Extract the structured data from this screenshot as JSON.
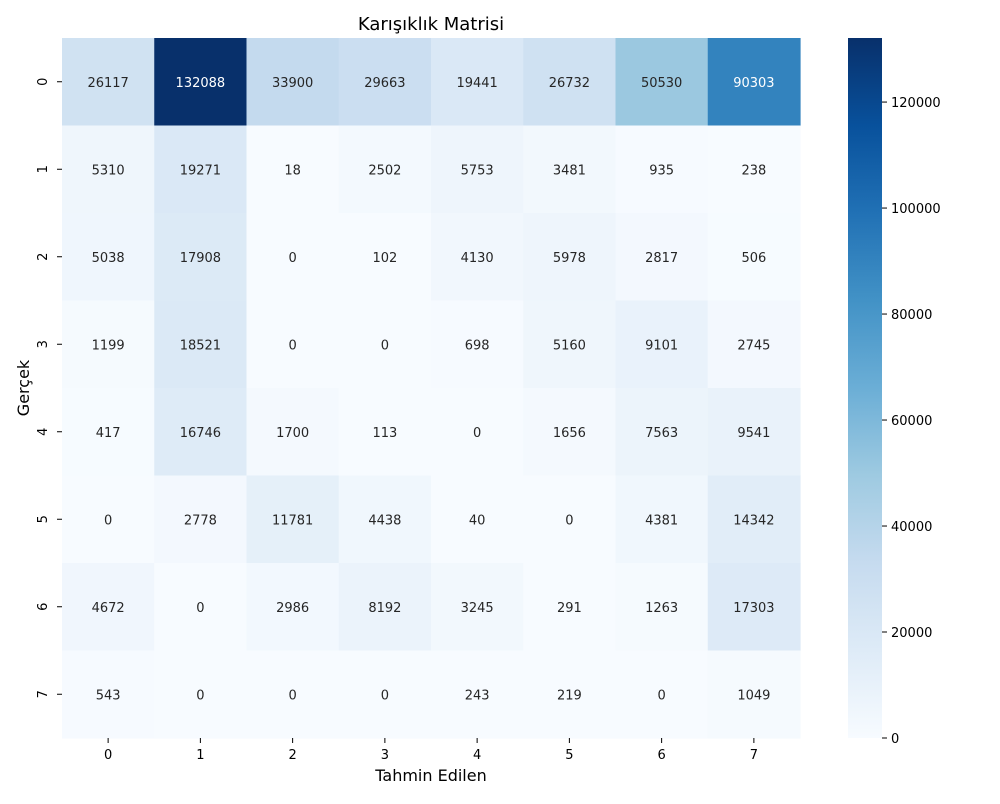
{
  "chart_data": {
    "type": "heatmap",
    "title": "Karışıklık Matrisi",
    "xlabel": "Tahmin Edilen",
    "ylabel": "Gerçek",
    "x_categories": [
      "0",
      "1",
      "2",
      "3",
      "4",
      "5",
      "6",
      "7"
    ],
    "y_categories": [
      "0",
      "1",
      "2",
      "3",
      "4",
      "5",
      "6",
      "7"
    ],
    "values": [
      [
        26117,
        132088,
        33900,
        29663,
        19441,
        26732,
        50530,
        90303
      ],
      [
        5310,
        19271,
        18,
        2502,
        5753,
        3481,
        935,
        238
      ],
      [
        5038,
        17908,
        0,
        102,
        4130,
        5978,
        2817,
        506
      ],
      [
        1199,
        18521,
        0,
        0,
        698,
        5160,
        9101,
        2745
      ],
      [
        417,
        16746,
        1700,
        113,
        0,
        1656,
        7563,
        9541
      ],
      [
        0,
        2778,
        11781,
        4438,
        40,
        0,
        4381,
        14342
      ],
      [
        4672,
        0,
        2986,
        8192,
        3245,
        291,
        1263,
        17303
      ],
      [
        543,
        0,
        0,
        0,
        243,
        219,
        0,
        1049
      ]
    ],
    "colormap": "Blues",
    "colorbar": {
      "range": [
        0,
        132088
      ],
      "ticks": [
        0,
        20000,
        40000,
        60000,
        80000,
        100000,
        120000
      ]
    },
    "grid": false
  }
}
